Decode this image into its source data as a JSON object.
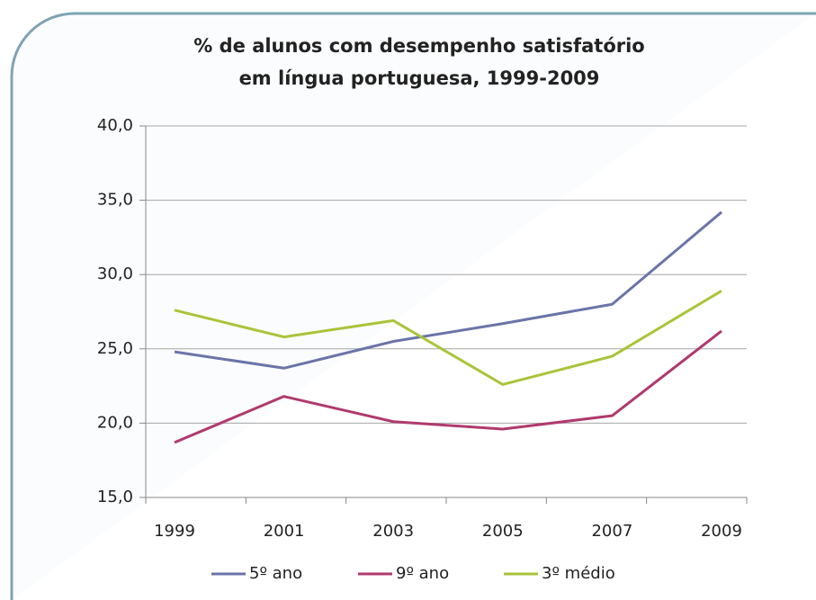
{
  "chart_data": {
    "type": "line",
    "title": [
      "% de alunos com desempenho satisfatório",
      "em língua portuguesa, 1999-2009"
    ],
    "categories": [
      "1999",
      "2001",
      "2003",
      "2005",
      "2007",
      "2009"
    ],
    "series": [
      {
        "name": "5º ano",
        "color": "#6b74a8",
        "values": [
          24.8,
          23.7,
          25.5,
          26.7,
          28.0,
          34.2
        ]
      },
      {
        "name": "9º ano",
        "color": "#b03a6e",
        "values": [
          18.7,
          21.8,
          20.1,
          19.6,
          20.5,
          26.2
        ]
      },
      {
        "name": "3º médio",
        "color": "#a9c43a",
        "values": [
          27.6,
          25.8,
          26.9,
          22.6,
          24.5,
          28.9
        ]
      }
    ],
    "ylim": [
      15,
      40
    ],
    "yticks": [
      {
        "value": 15,
        "label": "15,0"
      },
      {
        "value": 20,
        "label": "20,0"
      },
      {
        "value": 25,
        "label": "25,0"
      },
      {
        "value": 30,
        "label": "30,0"
      },
      {
        "value": 35,
        "label": "35,0"
      },
      {
        "value": 40,
        "label": "40,0"
      }
    ],
    "grid": true,
    "legend": "bottom"
  }
}
